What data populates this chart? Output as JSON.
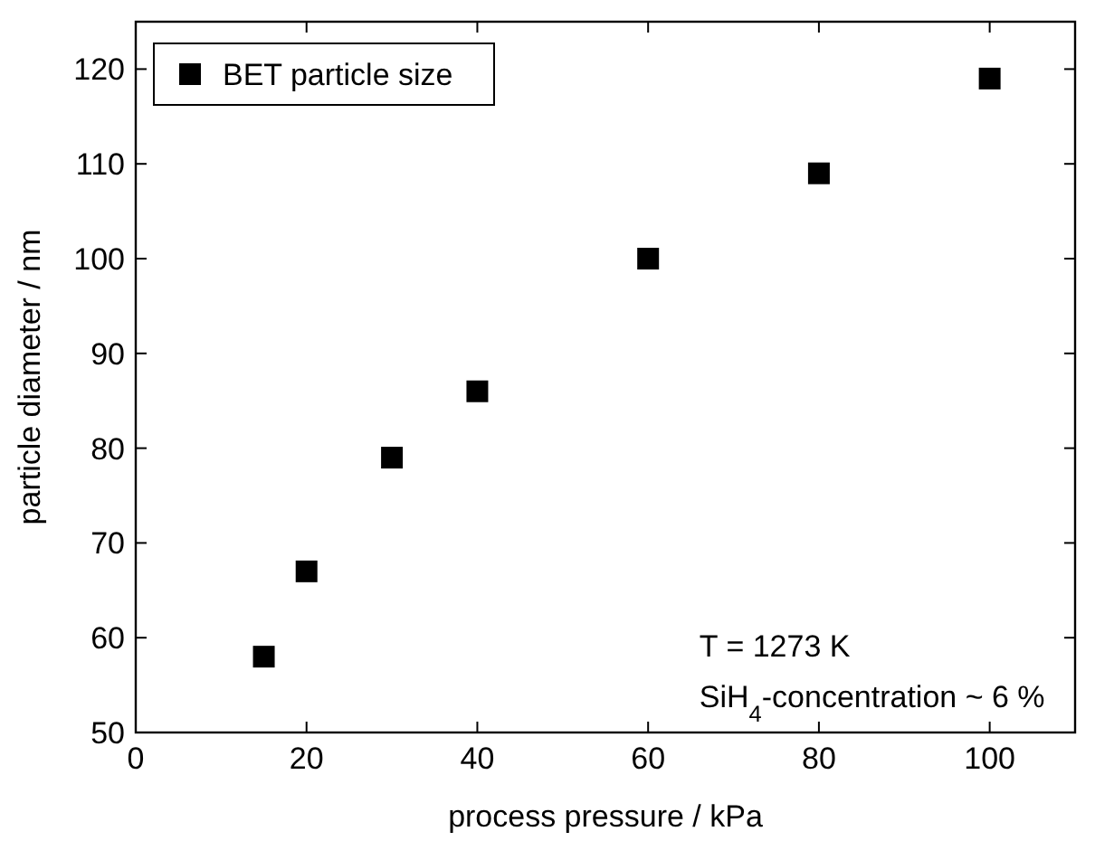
{
  "chart_data": {
    "type": "scatter",
    "xlabel": "process pressure / kPa",
    "ylabel": "particle diameter / nm",
    "x": [
      15,
      20,
      30,
      40,
      60,
      80,
      100
    ],
    "series": [
      {
        "name": "BET particle size",
        "color": "#000000",
        "values": [
          58,
          67,
          79,
          86,
          100,
          109,
          119
        ]
      }
    ],
    "xlim": [
      0,
      110
    ],
    "ylim": [
      50,
      125
    ],
    "xticks": [
      0,
      20,
      40,
      60,
      80,
      100
    ],
    "yticks": [
      50,
      60,
      70,
      80,
      90,
      100,
      110,
      120
    ],
    "annotations": [
      "T = 1273 K",
      "SiH$_{4}$-concentration ~ 6 %"
    ],
    "legend": "top left",
    "marker": "square",
    "grid": false
  }
}
